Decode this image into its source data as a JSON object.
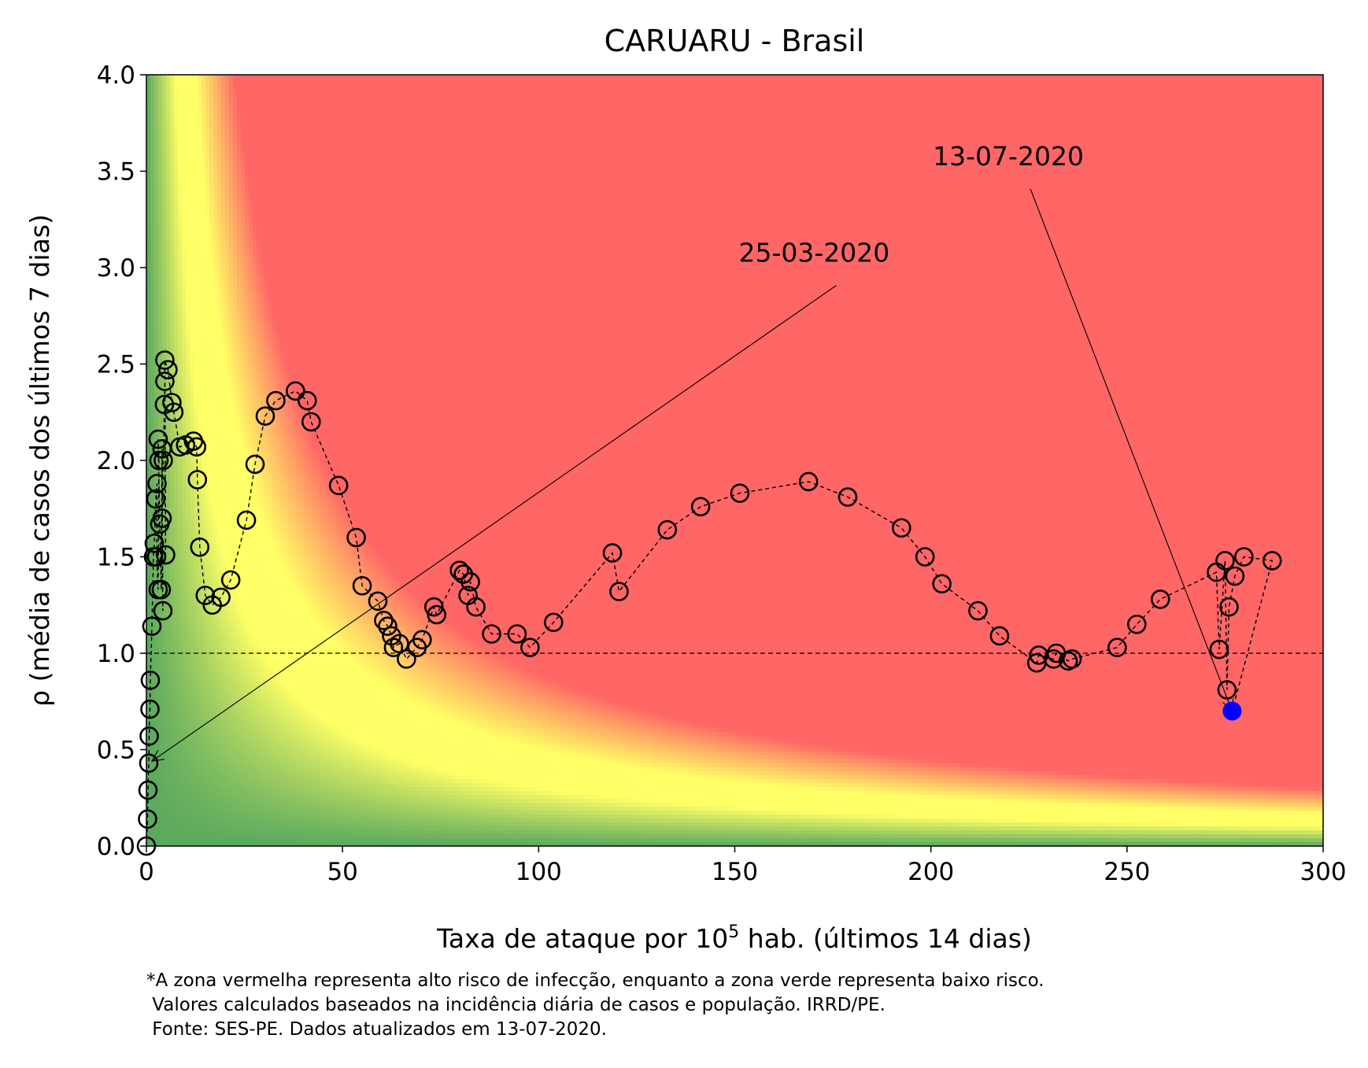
{
  "chart_data": {
    "type": "scatter",
    "title": "CARUARU - Brasil",
    "xlabel": {
      "prefix": "Taxa de ataque por 10",
      "sup": "5",
      "suffix": " hab. (últimos 14 dias)"
    },
    "ylabel": "ρ (média de casos dos últimos 7 dias)",
    "xlim": [
      0,
      300
    ],
    "ylim": [
      0,
      4.0
    ],
    "xticks": [
      "0",
      "50",
      "100",
      "150",
      "200",
      "250",
      "300"
    ],
    "yticks": [
      "0.0",
      "0.5",
      "1.0",
      "1.5",
      "2.0",
      "2.5",
      "3.0",
      "3.5",
      "4.0"
    ],
    "reference_line_y": 1.0,
    "background": "risk heatmap: green (low risk) to yellow to red (high risk), boundary along curve ρ·x ≈ constant",
    "colors": {
      "low": "#5aa95e",
      "mid": "#ffff66",
      "high": "#ff6666",
      "marker_edge": "#000000",
      "last_point": "#0000ff"
    },
    "points": [
      [
        0.0,
        0.0
      ],
      [
        0.3,
        0.14
      ],
      [
        0.4,
        0.29
      ],
      [
        0.6,
        0.43
      ],
      [
        0.7,
        0.57
      ],
      [
        0.9,
        0.71
      ],
      [
        1.0,
        0.86
      ],
      [
        1.4,
        1.14
      ],
      [
        1.8,
        1.5
      ],
      [
        2.0,
        1.57
      ],
      [
        2.4,
        1.8
      ],
      [
        2.7,
        1.88
      ],
      [
        2.6,
        1.5
      ],
      [
        3.0,
        1.33
      ],
      [
        3.2,
        2.0
      ],
      [
        3.0,
        2.11
      ],
      [
        3.4,
        1.67
      ],
      [
        3.8,
        1.33
      ],
      [
        4.0,
        2.06
      ],
      [
        4.2,
        1.22
      ],
      [
        4.0,
        1.7
      ],
      [
        4.3,
        2.0
      ],
      [
        4.6,
        2.29
      ],
      [
        4.7,
        2.41
      ],
      [
        4.9,
        1.51
      ],
      [
        4.7,
        2.52
      ],
      [
        5.5,
        2.47
      ],
      [
        6.5,
        2.3
      ],
      [
        7.0,
        2.25
      ],
      [
        8.5,
        2.07
      ],
      [
        10.0,
        2.08
      ],
      [
        12.0,
        2.1
      ],
      [
        12.8,
        2.07
      ],
      [
        13.0,
        1.9
      ],
      [
        13.6,
        1.55
      ],
      [
        15.0,
        1.3
      ],
      [
        16.8,
        1.25
      ],
      [
        19.0,
        1.29
      ],
      [
        21.5,
        1.38
      ],
      [
        25.5,
        1.69
      ],
      [
        27.7,
        1.98
      ],
      [
        30.3,
        2.23
      ],
      [
        33.0,
        2.31
      ],
      [
        38.0,
        2.36
      ],
      [
        41.0,
        2.31
      ],
      [
        42.0,
        2.2
      ],
      [
        49.0,
        1.87
      ],
      [
        53.5,
        1.6
      ],
      [
        55.0,
        1.35
      ],
      [
        59.0,
        1.27
      ],
      [
        60.5,
        1.17
      ],
      [
        61.5,
        1.14
      ],
      [
        62.5,
        1.09
      ],
      [
        63.0,
        1.03
      ],
      [
        64.5,
        1.05
      ],
      [
        66.3,
        0.97
      ],
      [
        69.0,
        1.03
      ],
      [
        70.3,
        1.07
      ],
      [
        73.3,
        1.24
      ],
      [
        74.0,
        1.2
      ],
      [
        79.8,
        1.43
      ],
      [
        80.8,
        1.41
      ],
      [
        82.0,
        1.3
      ],
      [
        82.6,
        1.37
      ],
      [
        84.0,
        1.24
      ],
      [
        88.0,
        1.1
      ],
      [
        94.5,
        1.1
      ],
      [
        97.8,
        1.03
      ],
      [
        103.8,
        1.16
      ],
      [
        118.8,
        1.52
      ],
      [
        120.5,
        1.32
      ],
      [
        132.8,
        1.64
      ],
      [
        141.3,
        1.76
      ],
      [
        151.3,
        1.83
      ],
      [
        168.8,
        1.89
      ],
      [
        178.8,
        1.81
      ],
      [
        192.5,
        1.65
      ],
      [
        198.5,
        1.5
      ],
      [
        202.8,
        1.36
      ],
      [
        212.0,
        1.22
      ],
      [
        217.5,
        1.09
      ],
      [
        227.0,
        0.95
      ],
      [
        227.5,
        0.99
      ],
      [
        231.3,
        0.97
      ],
      [
        232.0,
        1.0
      ],
      [
        235.0,
        0.96
      ],
      [
        236.0,
        0.97
      ],
      [
        247.5,
        1.03
      ],
      [
        252.5,
        1.15
      ],
      [
        258.5,
        1.28
      ],
      [
        272.8,
        1.42
      ],
      [
        273.5,
        1.02
      ],
      [
        275.0,
        1.48
      ],
      [
        275.5,
        0.81
      ],
      [
        276.0,
        1.24
      ],
      [
        277.5,
        1.4
      ],
      [
        279.8,
        1.5
      ],
      [
        287.0,
        1.48
      ]
    ],
    "last_point": [
      276.8,
      0.7
    ],
    "annotations": [
      {
        "text": "25-03-2020",
        "text_at": [
          151,
          3.03
        ],
        "arrow_to": [
          1.4,
          0.44
        ]
      },
      {
        "text": "13-07-2020",
        "text_at": [
          200.5,
          3.53
        ],
        "arrow_to": [
          276.8,
          0.7
        ]
      }
    ]
  },
  "footnote": {
    "line1": "*A zona vermelha representa alto risco de infecção, enquanto a zona verde representa baixo risco.",
    "line2": " Valores calculados baseados na incidência diária de casos e população. IRRD/PE.",
    "line3": " Fonte: SES-PE. Dados atualizados em 13-07-2020."
  }
}
